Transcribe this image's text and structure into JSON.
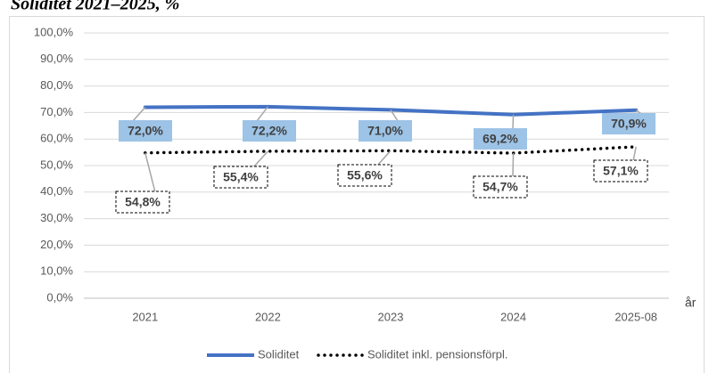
{
  "chart_data": {
    "type": "line",
    "title": "Soliditet 2021–2025, %",
    "x_label": "år",
    "categories": [
      "2021",
      "2022",
      "2023",
      "2024",
      "2025-08"
    ],
    "series": [
      {
        "name": "Soliditet",
        "color": "#4472c4",
        "style": "solid",
        "values": [
          72.0,
          72.2,
          71.0,
          69.2,
          70.9
        ],
        "value_labels": [
          "72,0%",
          "72,2%",
          "71,0%",
          "69,2%",
          "70,9%"
        ]
      },
      {
        "name": "Soliditet inkl. pensionsförpl.",
        "color": "#000000",
        "style": "dotted",
        "values": [
          54.8,
          55.4,
          55.6,
          54.7,
          57.1
        ],
        "value_labels": [
          "54,8%",
          "55,4%",
          "55,6%",
          "54,7%",
          "57,1%"
        ]
      }
    ],
    "ylim": [
      0,
      100
    ],
    "yticks": [
      {
        "value": 0,
        "label": "0,0%"
      },
      {
        "value": 10,
        "label": "10,0%"
      },
      {
        "value": 20,
        "label": "20,0%"
      },
      {
        "value": 30,
        "label": "30,0%"
      },
      {
        "value": 40,
        "label": "40,0%"
      },
      {
        "value": 50,
        "label": "50,0%"
      },
      {
        "value": 60,
        "label": "60,0%"
      },
      {
        "value": 70,
        "label": "70,0%"
      },
      {
        "value": 80,
        "label": "80,0%"
      },
      {
        "value": 90,
        "label": "90,0%"
      },
      {
        "value": 100,
        "label": "100,0%"
      }
    ],
    "grid": true,
    "legend": "bottom"
  }
}
